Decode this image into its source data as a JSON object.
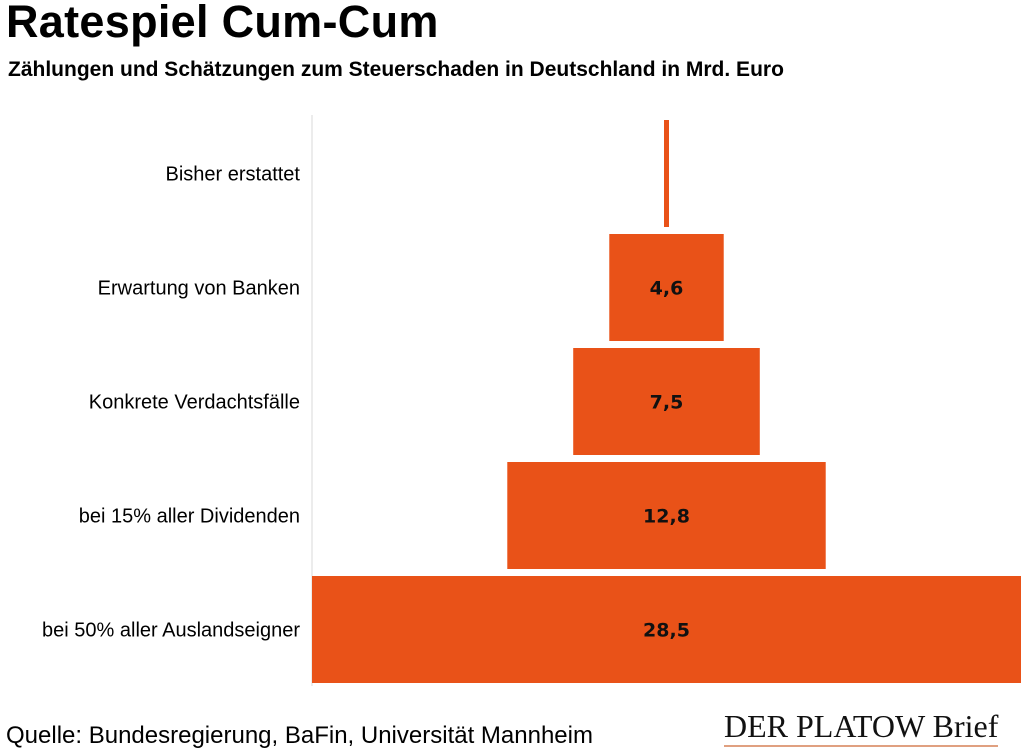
{
  "chart_data": {
    "type": "bar",
    "orientation": "horizontal-funnel",
    "title": "Ratespiel Cum-Cum",
    "subtitle": "Zählungen und Schätzungen zum Steuerschaden in Deutschland in Mrd. Euro",
    "categories": [
      "Bisher erstattet",
      "Erwartung von Banken",
      "Konkrete Verdachtsfälle",
      "bei 15% aller Dividenden",
      "bei 50% aller Auslandseigner"
    ],
    "values": [
      0.2,
      4.6,
      7.5,
      12.8,
      28.5
    ],
    "labels": [
      "",
      "4,6",
      "7,5",
      "12,8",
      "28,5"
    ],
    "xlim": [
      0,
      28.5
    ],
    "grid": false,
    "color": "#e95218"
  },
  "source": "Quelle: Bundesregierung, BaFin, Universität Mannheim",
  "logo": "DER PLATOW Brief"
}
